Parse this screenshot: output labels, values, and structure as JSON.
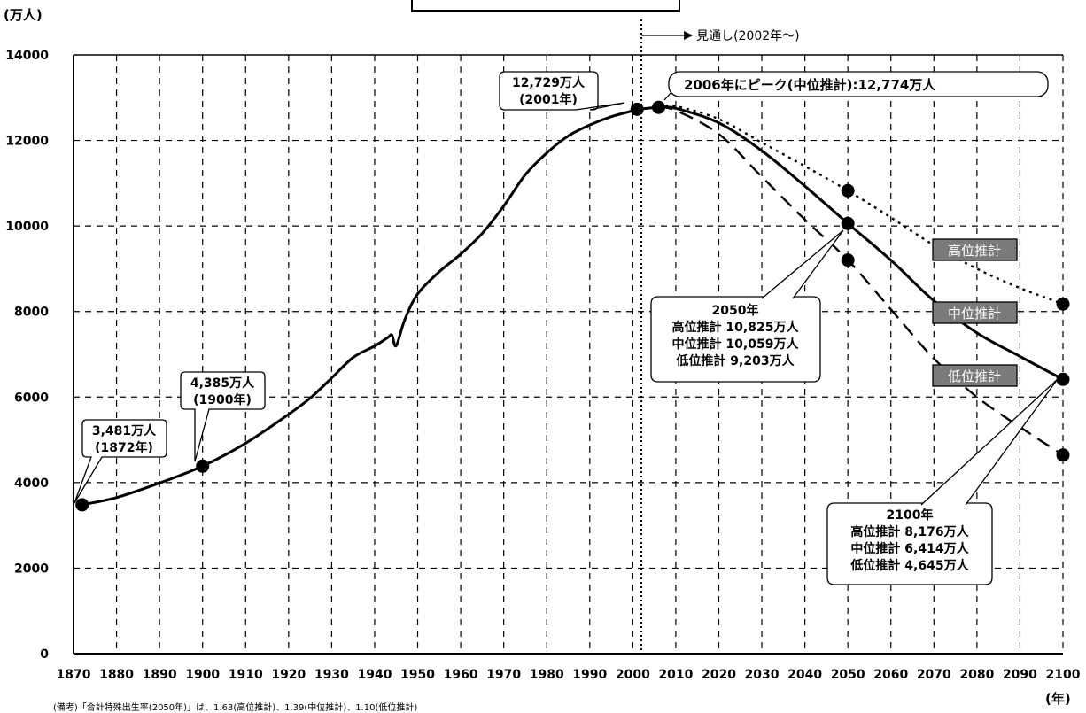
{
  "chart_data": {
    "type": "line",
    "ylabel": "(万人)",
    "xlabel": "(年)",
    "xlim": [
      1870,
      2100
    ],
    "ylim": [
      0,
      14000
    ],
    "x_ticks": [
      1870,
      1880,
      1890,
      1900,
      1910,
      1920,
      1930,
      1940,
      1950,
      1960,
      1970,
      1980,
      1990,
      2000,
      2010,
      2020,
      2030,
      2040,
      2050,
      2060,
      2070,
      2080,
      2090,
      2100
    ],
    "y_ticks": [
      0,
      2000,
      4000,
      6000,
      8000,
      10000,
      12000,
      14000
    ],
    "grid": true,
    "forecast_marker": {
      "x": 2002,
      "label": "見通し(2002年〜)"
    },
    "series": [
      {
        "name": "",
        "style": "solid",
        "points": [
          [
            1872,
            3481
          ],
          [
            1880,
            3650
          ],
          [
            1890,
            3990
          ],
          [
            1900,
            4385
          ],
          [
            1910,
            4920
          ],
          [
            1920,
            5596
          ],
          [
            1925,
            5974
          ],
          [
            1930,
            6445
          ],
          [
            1935,
            6925
          ],
          [
            1940,
            7193
          ],
          [
            1943,
            7388
          ],
          [
            1944,
            7450
          ],
          [
            1945,
            7200
          ],
          [
            1947,
            7810
          ],
          [
            1950,
            8412
          ],
          [
            1955,
            8928
          ],
          [
            1960,
            9342
          ],
          [
            1965,
            9828
          ],
          [
            1970,
            10467
          ],
          [
            1975,
            11194
          ],
          [
            1980,
            11706
          ],
          [
            1985,
            12105
          ],
          [
            1990,
            12361
          ],
          [
            1995,
            12557
          ],
          [
            2000,
            12693
          ],
          [
            2001,
            12729
          ],
          [
            2006,
            12774
          ]
        ]
      },
      {
        "name": "中位推計",
        "style": "solid",
        "points": [
          [
            2006,
            12774
          ],
          [
            2010,
            12750
          ],
          [
            2020,
            12411
          ],
          [
            2030,
            11758
          ],
          [
            2040,
            10934
          ],
          [
            2050,
            10059
          ],
          [
            2060,
            9200
          ],
          [
            2070,
            8250
          ],
          [
            2080,
            7500
          ],
          [
            2090,
            6950
          ],
          [
            2100,
            6414
          ]
        ]
      },
      {
        "name": "高位推計",
        "style": "dotted",
        "points": [
          [
            2006,
            12774
          ],
          [
            2010,
            12800
          ],
          [
            2020,
            12500
          ],
          [
            2030,
            11950
          ],
          [
            2040,
            11400
          ],
          [
            2050,
            10825
          ],
          [
            2060,
            10200
          ],
          [
            2070,
            9550
          ],
          [
            2080,
            9000
          ],
          [
            2090,
            8550
          ],
          [
            2100,
            8176
          ]
        ]
      },
      {
        "name": "低位推計",
        "style": "dashed",
        "points": [
          [
            2006,
            12774
          ],
          [
            2010,
            12700
          ],
          [
            2020,
            12150
          ],
          [
            2030,
            11150
          ],
          [
            2040,
            10150
          ],
          [
            2050,
            9203
          ],
          [
            2060,
            8050
          ],
          [
            2070,
            6900
          ],
          [
            2080,
            6000
          ],
          [
            2090,
            5300
          ],
          [
            2100,
            4645
          ]
        ]
      }
    ],
    "markers": [
      [
        1872,
        3481
      ],
      [
        1900,
        4385
      ],
      [
        2001,
        12729
      ],
      [
        2006,
        12774
      ],
      [
        2050,
        10825
      ],
      [
        2050,
        10059
      ],
      [
        2050,
        9203
      ],
      [
        2100,
        8176
      ],
      [
        2100,
        6414
      ],
      [
        2100,
        4645
      ]
    ],
    "annotations": {
      "a1872": [
        "3,481万人",
        "(1872年)"
      ],
      "a1900": [
        "4,385万人",
        "(1900年)"
      ],
      "a2001": [
        "12,729万人",
        "(2001年)"
      ],
      "peak": "2006年にピーク(中位推計):12,774万人",
      "y2050": [
        "2050年",
        "高位推計 10,825万人",
        "中位推計 10,059万人",
        "低位推計  9,203万人"
      ],
      "y2100": [
        "2100年",
        "高位推計 8,176万人",
        "中位推計 6,414万人",
        "低位推計 4,645万人"
      ]
    },
    "legend_labels": [
      "高位推計",
      "中位推計",
      "低位推計"
    ],
    "note": "(備考)「合計特殊出生率(2050年)」は、1.63(高位推計)、1.39(中位推計)、1.10(低位推計)"
  }
}
